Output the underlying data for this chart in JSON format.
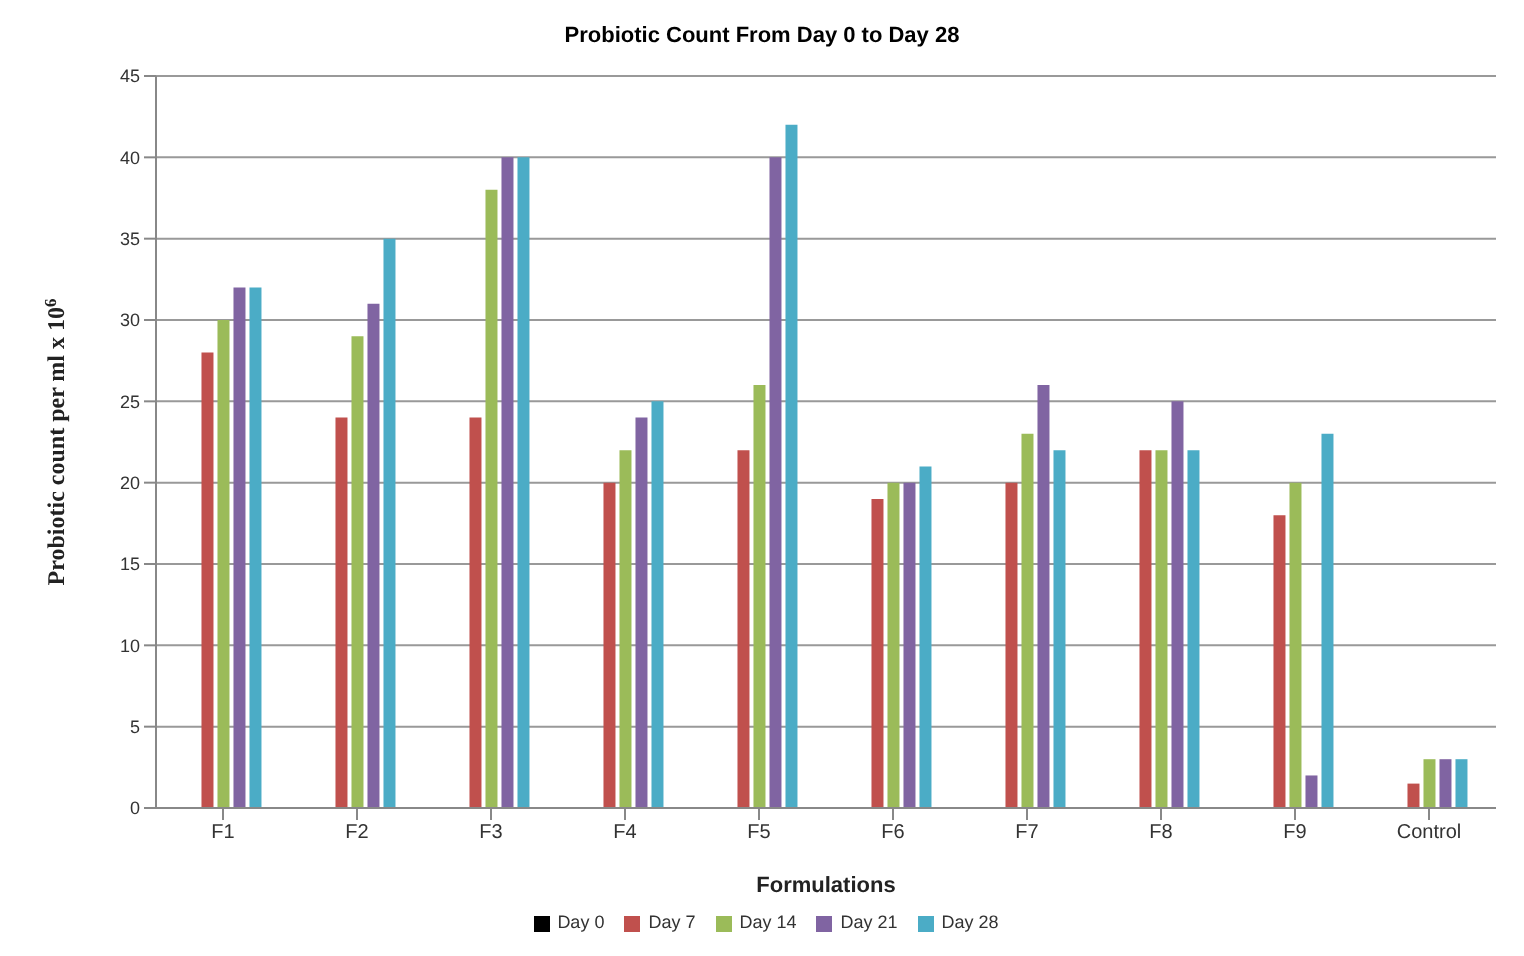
{
  "chart_data": {
    "type": "bar",
    "title": "Probiotic Count From Day 0 to Day 28",
    "xlabel": "Formulations",
    "ylabel": "Probiotic count per ml x 10$^{6}$",
    "categories": [
      "F1",
      "F2",
      "F3",
      "F4",
      "F5",
      "F6",
      "F7",
      "F8",
      "F9",
      "Control"
    ],
    "series": [
      {
        "name": "Day 0",
        "color": "#000000",
        "values": [
          null,
          null,
          null,
          null,
          null,
          null,
          null,
          null,
          null,
          null
        ]
      },
      {
        "name": "Day 7",
        "color": "#c0504d",
        "values": [
          28,
          24,
          24,
          20,
          22,
          19,
          20,
          22,
          18,
          1.5
        ]
      },
      {
        "name": "Day 14",
        "color": "#9bbb59",
        "values": [
          30,
          29,
          38,
          22,
          26,
          20,
          23,
          22,
          20,
          3
        ]
      },
      {
        "name": "Day 21",
        "color": "#8064a2",
        "values": [
          32,
          31,
          40,
          24,
          40,
          20,
          26,
          25,
          2,
          3
        ]
      },
      {
        "name": "Day 28",
        "color": "#4bacc6",
        "values": [
          32,
          35,
          40,
          25,
          42,
          21,
          22,
          22,
          23,
          3
        ]
      }
    ],
    "ylim": [
      0,
      45
    ],
    "yticks": [
      0,
      5,
      10,
      15,
      20,
      25,
      30,
      35,
      40,
      45
    ],
    "grid": "y",
    "legend": "bottom"
  }
}
